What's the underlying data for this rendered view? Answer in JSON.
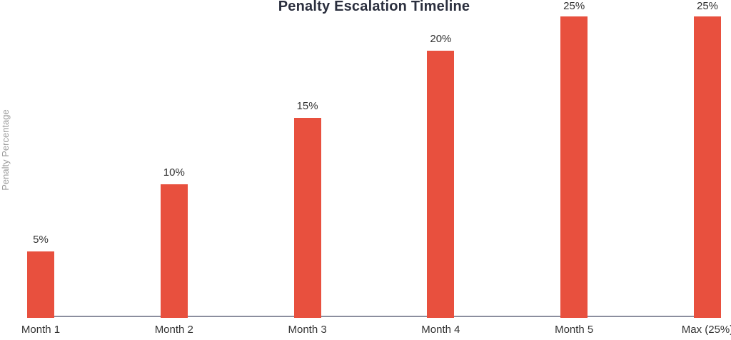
{
  "chart_data": {
    "type": "bar",
    "title": "Penalty Escalation Timeline",
    "xlabel": "",
    "ylabel": "Penalty Percentage",
    "categories": [
      "Month 1",
      "Month 2",
      "Month 3",
      "Month 4",
      "Month 5",
      "Max (25%)"
    ],
    "values": [
      5,
      10,
      15,
      20,
      25,
      25
    ],
    "value_labels": [
      "5%",
      "10%",
      "15%",
      "20%",
      "25%",
      "25%"
    ],
    "ylim": [
      0,
      25
    ],
    "grid": false,
    "legend": false,
    "colors": {
      "bar": "#e8503e",
      "title": "#2b2f3e",
      "labels": "#333333",
      "axis_label": "#9b9b9b",
      "axis_line": "#8b8e9e",
      "background": "#ffffff"
    }
  }
}
